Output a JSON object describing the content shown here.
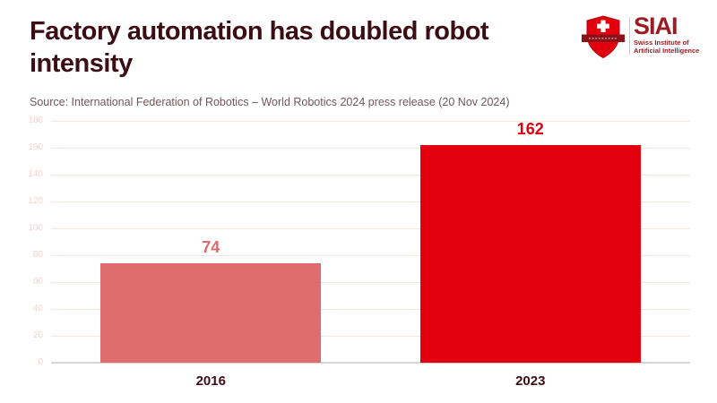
{
  "header": {
    "title": "Factory automation has doubled robot intensity",
    "source": "Source: International Federation of Robotics – World Robotics 2024 press release (20 Nov 2024)"
  },
  "logo": {
    "wordmark": "SIAI",
    "subtitle_line1": "Swiss Institute of",
    "subtitle_line2": "Artificial Intelligence",
    "shield_color": "#e2000f",
    "banner_color": "#8c1118",
    "text_color": "#9d1c24"
  },
  "chart_data": {
    "type": "bar",
    "categories": [
      "2016",
      "2023"
    ],
    "values": [
      74,
      162
    ],
    "bar_colors": [
      "#e06d6d",
      "#e2000f"
    ],
    "value_label_colors": [
      "#dc6a6a",
      "#e2000f"
    ],
    "title": "Factory automation has doubled robot intensity",
    "xlabel": "",
    "ylabel": "",
    "ylim": [
      0,
      180
    ],
    "ytick_step": 20,
    "grid": true,
    "legend": false,
    "gridline_color": "#f9e2e2",
    "axis_line_color": "#d5d5d5",
    "ytick_label_color": "#f6d2d2"
  },
  "colors": {
    "title_text": "#3c0d14",
    "source_text": "#6d585c",
    "background": "#ffffff"
  }
}
